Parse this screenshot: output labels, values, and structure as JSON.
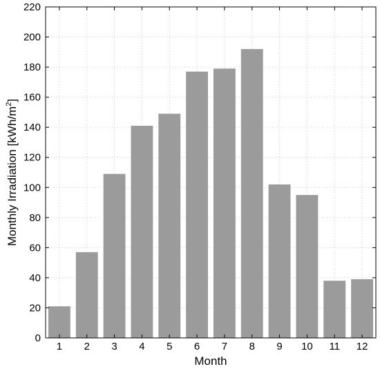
{
  "chart_data": {
    "type": "bar",
    "categories": [
      "1",
      "2",
      "3",
      "4",
      "5",
      "6",
      "7",
      "8",
      "9",
      "10",
      "11",
      "12"
    ],
    "values": [
      21,
      57,
      109,
      141,
      149,
      177,
      179,
      192,
      102,
      95,
      38,
      39
    ],
    "title": "",
    "xlabel": "Month",
    "ylabel_prefix": "Monthly Irradiation [kWh/m",
    "ylabel_superscript": "2",
    "ylabel_suffix": "]",
    "ylim": [
      0,
      220
    ],
    "yticks": [
      "0",
      "20",
      "40",
      "60",
      "80",
      "100",
      "120",
      "140",
      "160",
      "180",
      "200",
      "220"
    ],
    "grid": true,
    "bar_color": "#9b9b9b"
  }
}
